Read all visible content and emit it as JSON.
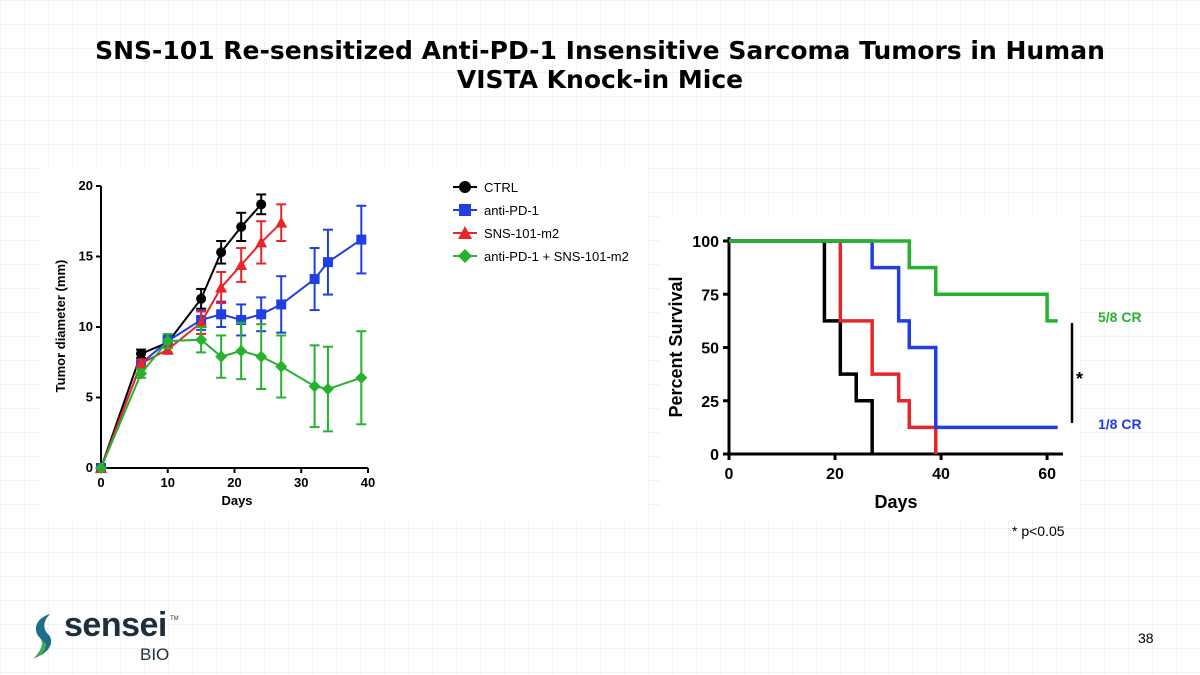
{
  "slide": {
    "title_lines": [
      "SNS-101 Re-sensitized Anti-PD-1 Insensitive Sarcoma Tumors in Human",
      "VISTA Knock-in Mice"
    ],
    "footnote": "* p<0.05",
    "page_number": "38",
    "logo": {
      "word": "sensei",
      "tm": "TM",
      "sub": "BIO",
      "colors": [
        "#1b6f8a",
        "#3fae49"
      ]
    }
  },
  "chart_data": [
    {
      "type": "line",
      "title": "",
      "xlabel": "Days",
      "ylabel": "Tumor diameter (mm)",
      "xlim": [
        0,
        40
      ],
      "ylim": [
        0,
        20
      ],
      "xticks": [
        0,
        10,
        20,
        30,
        40
      ],
      "yticks": [
        0,
        5,
        10,
        15,
        20
      ],
      "legend": "right",
      "series": [
        {
          "name": "CTRL",
          "color": "#000000",
          "marker": "circle",
          "x": [
            0,
            6,
            10,
            15,
            18,
            21,
            24
          ],
          "y": [
            0,
            8.1,
            8.9,
            12.0,
            15.3,
            17.1,
            18.7
          ],
          "err": [
            0,
            0.3,
            0.3,
            0.7,
            0.8,
            1.0,
            0.7
          ]
        },
        {
          "name": "anti-PD-1",
          "color": "#1f3fe0",
          "marker": "square",
          "x": [
            0,
            6,
            10,
            15,
            18,
            21,
            24,
            27,
            32,
            34,
            39
          ],
          "y": [
            0,
            7.4,
            9.0,
            10.5,
            10.9,
            10.5,
            10.9,
            11.6,
            13.4,
            14.6,
            16.2
          ],
          "err": [
            0,
            0.3,
            0.4,
            0.7,
            0.9,
            1.1,
            1.2,
            2.0,
            2.2,
            2.3,
            2.4
          ]
        },
        {
          "name": "SNS-101-m2",
          "color": "#e8262a",
          "marker": "triangle",
          "x": [
            0,
            6,
            10,
            15,
            18,
            21,
            24,
            27
          ],
          "y": [
            0,
            7.4,
            8.4,
            10.3,
            12.8,
            14.4,
            16.0,
            17.4
          ],
          "err": [
            0,
            0.3,
            0.3,
            0.8,
            1.1,
            1.2,
            1.5,
            1.3
          ]
        },
        {
          "name": "anti-PD-1 + SNS-101-m2",
          "color": "#26b12f",
          "marker": "diamond",
          "x": [
            0,
            6,
            10,
            15,
            18,
            21,
            24,
            27,
            32,
            34,
            39
          ],
          "y": [
            0,
            6.7,
            9.0,
            9.1,
            7.9,
            8.3,
            7.9,
            7.2,
            5.8,
            5.6,
            6.4
          ],
          "err": [
            0,
            0.3,
            0.5,
            0.9,
            1.5,
            2.0,
            2.3,
            2.2,
            2.9,
            3.0,
            3.3
          ]
        }
      ]
    },
    {
      "type": "line",
      "step": true,
      "title": "",
      "xlabel": "Days",
      "ylabel": "Percent Survival",
      "xlim": [
        0,
        63
      ],
      "ylim": [
        0,
        100
      ],
      "xticks": [
        0,
        20,
        40,
        60
      ],
      "yticks": [
        0,
        25,
        50,
        75,
        100
      ],
      "legend": "none",
      "series": [
        {
          "name": "",
          "color": "#000000",
          "x": [
            0,
            18,
            21,
            24,
            27
          ],
          "y": [
            100,
            62.5,
            37.5,
            25,
            0
          ]
        },
        {
          "name": "",
          "color": "#e8262a",
          "x": [
            0,
            21,
            27,
            32,
            34,
            39
          ],
          "y": [
            100,
            62.5,
            37.5,
            25,
            12.5,
            0
          ]
        },
        {
          "name": "",
          "color": "#1f3fe0",
          "x": [
            0,
            27,
            32,
            34,
            39,
            62
          ],
          "y": [
            100,
            87.5,
            62.5,
            50,
            12.5,
            12.5
          ]
        },
        {
          "name": "",
          "color": "#26b12f",
          "x": [
            0,
            34,
            39,
            60,
            62
          ],
          "y": [
            100,
            87.5,
            75,
            62.5,
            62.5
          ]
        }
      ],
      "annotations": [
        {
          "text": "5/8 CR",
          "color": "#26b12f"
        },
        {
          "text": "1/8 CR",
          "color": "#1f3fe0"
        },
        {
          "text": "*",
          "color": "#000000"
        }
      ]
    }
  ]
}
